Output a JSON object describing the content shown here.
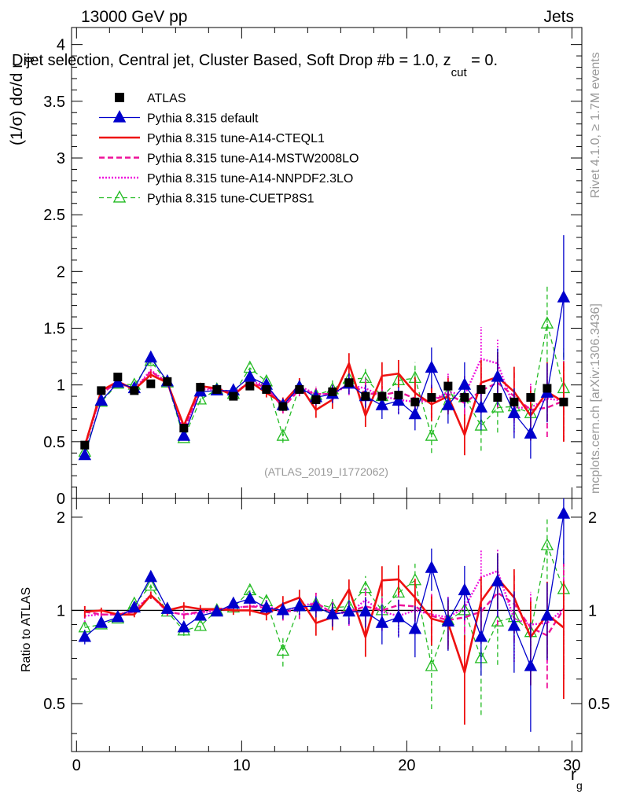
{
  "header": {
    "left": "13000 GeV pp",
    "right": "Jets",
    "plot_title": "Dijet selection, Central jet, Cluster Based, Soft Drop #b = 1.0, z",
    "plot_title_sub": "cut",
    "plot_title_tail": " = 0.",
    "analysis": "(ATLAS_2019_I1772062)",
    "side_rivet": "Rivet 4.1.0, ≥ 1.7M events",
    "side_mcplots": "mcplots.cern.ch [arXiv:1306.3436]"
  },
  "colors": {
    "ATLAS": "#000000",
    "default": "#0000cc",
    "CTEQL1": "#ee1111",
    "MSTW": "#ee1199",
    "NNPDF": "#ee11dd",
    "CUETP8S1": "#22bb22"
  },
  "chart_data": [
    {
      "id": "main",
      "type": "line",
      "ylabel": "(1/σ) dσ/d r",
      "ylabel_sub": "g",
      "xlim": [
        -0.3,
        30.6
      ],
      "ylim": [
        0,
        4.15
      ],
      "yticks": [
        "0",
        "0.5",
        "1",
        "1.5",
        "2",
        "2.5",
        "3",
        "3.5",
        "4"
      ],
      "x": [
        0.5,
        1.5,
        2.5,
        3.5,
        4.5,
        5.5,
        6.5,
        7.5,
        8.5,
        9.5,
        10.5,
        11.5,
        12.5,
        13.5,
        14.5,
        15.5,
        16.5,
        17.5,
        18.5,
        19.5,
        20.5,
        21.5,
        22.5,
        23.5,
        24.5,
        25.5,
        26.5,
        27.5,
        28.5,
        29.5
      ],
      "legend": [
        {
          "key": "ATLAS",
          "label": "ATLAS"
        },
        {
          "key": "default",
          "label": "Pythia 8.315 default"
        },
        {
          "key": "CTEQL1",
          "label": "Pythia 8.315 tune-A14-CTEQL1"
        },
        {
          "key": "MSTW",
          "label": "Pythia 8.315 tune-A14-MSTW2008LO"
        },
        {
          "key": "NNPDF",
          "label": "Pythia 8.315 tune-A14-NNPDF2.3LO"
        },
        {
          "key": "CUETP8S1",
          "label": "Pythia 8.315 tune-CUETP8S1"
        }
      ],
      "data_values": [
        0.47,
        0.95,
        1.07,
        0.95,
        1.01,
        1.03,
        0.62,
        0.98,
        0.96,
        0.9,
        0.99,
        0.96,
        0.81,
        0.96,
        0.87,
        0.94,
        1.02,
        0.9,
        0.9,
        0.91,
        0.85,
        0.89,
        0.99,
        0.89,
        0.96,
        0.89,
        0.85,
        0.89,
        0.97,
        0.85
      ],
      "series": [
        {
          "key": "default",
          "values": [
            0.38,
            0.86,
            1.02,
            0.97,
            1.24,
            1.03,
            0.55,
            0.94,
            0.95,
            0.95,
            1.07,
            1.0,
            0.82,
            0.98,
            0.89,
            0.92,
            1.01,
            0.9,
            0.82,
            0.86,
            0.74,
            1.15,
            0.82,
            1.0,
            0.8,
            1.07,
            0.75,
            0.57,
            0.93,
            1.77
          ],
          "err": [
            0.02,
            0.02,
            0.02,
            0.02,
            0.03,
            0.03,
            0.02,
            0.03,
            0.03,
            0.03,
            0.04,
            0.04,
            0.05,
            0.06,
            0.07,
            0.08,
            0.09,
            0.1,
            0.12,
            0.12,
            0.14,
            0.18,
            0.16,
            0.2,
            0.2,
            0.25,
            0.22,
            0.22,
            0.26,
            0.55
          ]
        },
        {
          "key": "CTEQL1",
          "values": [
            0.46,
            0.95,
            1.03,
            0.96,
            1.09,
            1.02,
            0.64,
            0.99,
            0.97,
            0.91,
            1.03,
            0.93,
            0.84,
            1.0,
            0.78,
            0.87,
            1.19,
            0.73,
            1.08,
            1.1,
            0.93,
            0.83,
            0.9,
            0.56,
            1.02,
            1.07,
            0.94,
            0.73,
            0.94,
            0.85
          ],
          "err": [
            0.02,
            0.02,
            0.02,
            0.02,
            0.03,
            0.03,
            0.02,
            0.03,
            0.03,
            0.03,
            0.04,
            0.04,
            0.05,
            0.06,
            0.07,
            0.08,
            0.09,
            0.1,
            0.12,
            0.12,
            0.14,
            0.15,
            0.16,
            0.18,
            0.2,
            0.22,
            0.22,
            0.22,
            0.26,
            0.35
          ]
        },
        {
          "key": "MSTW",
          "values": [
            0.47,
            0.92,
            1.03,
            0.95,
            1.12,
            1.02,
            0.6,
            0.97,
            0.97,
            0.93,
            1.02,
            0.98,
            0.8,
            0.96,
            0.92,
            0.92,
            1.01,
            0.93,
            0.91,
            0.94,
            0.88,
            0.86,
            0.92,
            0.84,
            0.95,
            1.02,
            0.9,
            0.78,
            0.8,
            0.86
          ],
          "err": [
            0.02,
            0.02,
            0.02,
            0.02,
            0.03,
            0.03,
            0.02,
            0.03,
            0.03,
            0.03,
            0.04,
            0.04,
            0.05,
            0.06,
            0.07,
            0.08,
            0.09,
            0.1,
            0.12,
            0.12,
            0.14,
            0.15,
            0.16,
            0.18,
            0.2,
            0.22,
            0.22,
            0.22,
            0.26,
            0.35
          ]
        },
        {
          "key": "NNPDF",
          "values": [
            0.45,
            0.92,
            1.03,
            0.96,
            1.13,
            1.02,
            0.6,
            0.96,
            0.96,
            0.92,
            1.03,
            1.0,
            0.8,
            0.99,
            0.92,
            0.92,
            1.0,
            0.97,
            0.9,
            0.87,
            0.85,
            0.86,
            0.94,
            0.91,
            1.23,
            1.19,
            0.8,
            0.8,
            0.88,
            0.86
          ],
          "err": [
            0.02,
            0.02,
            0.02,
            0.02,
            0.03,
            0.03,
            0.02,
            0.03,
            0.03,
            0.03,
            0.04,
            0.04,
            0.05,
            0.06,
            0.07,
            0.08,
            0.09,
            0.1,
            0.12,
            0.12,
            0.14,
            0.15,
            0.16,
            0.18,
            0.28,
            0.22,
            0.22,
            0.22,
            0.26,
            0.35
          ]
        },
        {
          "key": "CUETP8S1",
          "values": [
            0.41,
            0.85,
            1.01,
            1.0,
            1.21,
            1.02,
            0.53,
            0.87,
            0.96,
            0.92,
            1.15,
            1.03,
            0.55,
            0.98,
            0.91,
            0.96,
            1.05,
            1.06,
            0.9,
            1.04,
            1.06,
            0.55,
            0.92,
            0.89,
            0.64,
            0.8,
            0.81,
            0.75,
            1.54,
            0.97
          ],
          "err": [
            0.02,
            0.02,
            0.02,
            0.02,
            0.03,
            0.03,
            0.02,
            0.03,
            0.03,
            0.03,
            0.04,
            0.04,
            0.06,
            0.06,
            0.07,
            0.08,
            0.09,
            0.1,
            0.12,
            0.14,
            0.14,
            0.15,
            0.16,
            0.2,
            0.22,
            0.22,
            0.22,
            0.22,
            0.34,
            0.35
          ]
        }
      ]
    },
    {
      "id": "ratio",
      "type": "line",
      "ylabel": "Ratio to ATLAS",
      "xlabel": "r",
      "xlabel_sub": "g",
      "xlim": [
        -0.3,
        30.6
      ],
      "ylim": [
        0.35,
        2.3
      ],
      "yticks": [
        "0.5",
        "1",
        "2"
      ],
      "xticks": [
        "0",
        "10",
        "20",
        "30"
      ],
      "series": [
        {
          "key": "default",
          "values": [
            0.82,
            0.91,
            0.95,
            1.02,
            1.28,
            1.01,
            0.88,
            0.96,
            0.99,
            1.05,
            1.09,
            1.02,
            1.0,
            1.03,
            1.03,
            0.97,
            0.99,
            0.99,
            0.91,
            0.95,
            0.87,
            1.37,
            0.92,
            1.16,
            0.82,
            1.24,
            0.89,
            0.66,
            0.96,
            2.05
          ]
        },
        {
          "key": "CTEQL1",
          "values": [
            0.99,
            1.0,
            0.97,
            0.97,
            1.12,
            1.0,
            1.03,
            1.01,
            1.01,
            1.0,
            1.0,
            0.97,
            1.05,
            1.1,
            0.91,
            0.95,
            1.17,
            0.82,
            1.25,
            1.26,
            1.1,
            0.94,
            0.91,
            0.63,
            1.07,
            1.27,
            1.1,
            0.82,
            0.97,
            0.88
          ]
        },
        {
          "key": "MSTW",
          "values": [
            0.99,
            0.97,
            0.97,
            0.99,
            1.12,
            0.99,
            0.97,
            0.99,
            1.01,
            1.02,
            1.03,
            1.02,
            0.99,
            1.0,
            1.06,
            0.98,
            0.99,
            1.03,
            1.0,
            1.04,
            1.03,
            0.96,
            0.93,
            0.95,
            0.99,
            1.14,
            1.05,
            0.88,
            0.83,
            1.01
          ]
        },
        {
          "key": "NNPDF",
          "values": [
            0.96,
            0.97,
            0.97,
            1.0,
            1.12,
            0.99,
            0.97,
            0.98,
            1.0,
            1.02,
            1.03,
            1.04,
            0.99,
            1.03,
            1.06,
            0.98,
            0.98,
            1.08,
            0.99,
            0.96,
            1.0,
            0.97,
            0.95,
            1.02,
            1.28,
            1.34,
            0.94,
            0.9,
            0.91,
            1.01
          ]
        },
        {
          "key": "CUETP8S1",
          "values": [
            0.88,
            0.9,
            0.94,
            1.05,
            1.2,
            0.99,
            0.86,
            0.89,
            1.0,
            1.02,
            1.16,
            1.07,
            0.74,
            1.03,
            1.05,
            1.02,
            1.03,
            1.18,
            1.0,
            1.14,
            1.25,
            0.66,
            0.93,
            1.0,
            0.7,
            0.92,
            0.95,
            0.85,
            1.62,
            1.17
          ]
        }
      ]
    }
  ]
}
